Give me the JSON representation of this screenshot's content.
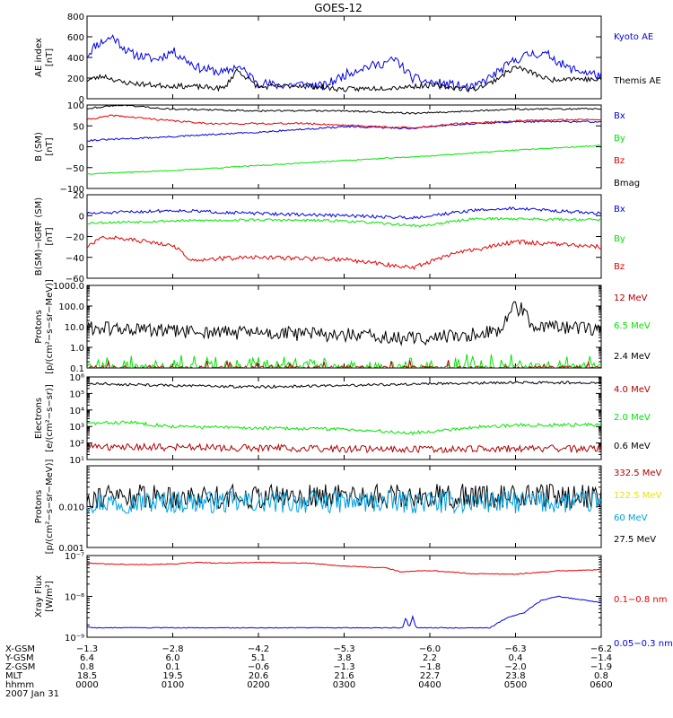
{
  "title": "GOES-12",
  "date_label": "2007 Jan 31",
  "colors": {
    "black": "#000000",
    "blue": "#0000e6",
    "red": "#e60000",
    "green": "#00e600",
    "darkred": "#b00000",
    "yellow": "#e6e600",
    "cyan": "#00a0e0"
  },
  "chart_data": [
    {
      "id": "ae",
      "type": "line",
      "ylabel": [
        "AE index",
        "[nT]"
      ],
      "yscale": "linear",
      "ylim": [
        0,
        800
      ],
      "yticks": [
        0,
        200,
        400,
        600,
        800
      ],
      "yticklabels": [
        "0",
        "200",
        "400",
        "600",
        "800"
      ],
      "legend": [
        {
          "label": "Kyoto AE",
          "color": "blue"
        },
        {
          "label": "Themis AE",
          "color": "black"
        }
      ],
      "series": [
        {
          "name": "Kyoto AE",
          "color": "blue",
          "noise": 45,
          "seed": 11,
          "x": [
            0,
            0.1,
            0.3,
            0.5,
            0.8,
            1.0,
            1.3,
            1.6,
            1.75,
            2.0,
            2.2,
            2.5,
            2.75,
            2.85,
            3.0,
            3.2,
            3.4,
            3.6,
            3.8,
            4.0,
            4.3,
            4.5,
            4.65,
            4.8,
            5.0,
            5.2,
            5.4,
            5.6,
            5.8,
            6.0
          ],
          "y": [
            420,
            520,
            600,
            440,
            380,
            460,
            300,
            250,
            320,
            160,
            130,
            140,
            120,
            160,
            230,
            300,
            330,
            380,
            200,
            160,
            130,
            100,
            180,
            260,
            380,
            440,
            420,
            300,
            260,
            220
          ]
        },
        {
          "name": "Themis AE",
          "color": "black",
          "noise": 25,
          "seed": 23,
          "x": [
            0,
            0.2,
            0.4,
            0.8,
            1.2,
            1.6,
            1.75,
            2.0,
            2.5,
            3.0,
            3.6,
            3.8,
            4.0,
            4.5,
            4.7,
            5.0,
            5.2,
            5.4,
            5.6,
            5.8,
            6.0
          ],
          "y": [
            180,
            220,
            160,
            130,
            120,
            100,
            280,
            110,
            130,
            90,
            110,
            120,
            130,
            90,
            150,
            310,
            250,
            180,
            200,
            190,
            180
          ]
        }
      ]
    },
    {
      "id": "bsm",
      "type": "line",
      "ylabel": [
        "B (SM)",
        "[nT]"
      ],
      "yscale": "linear",
      "ylim": [
        -100,
        100
      ],
      "yticks": [
        -100,
        -50,
        0,
        50,
        100
      ],
      "yticklabels": [
        "−100",
        "−50",
        "0",
        "50",
        "100"
      ],
      "legend": [
        {
          "label": "Bx",
          "color": "blue"
        },
        {
          "label": "By",
          "color": "green"
        },
        {
          "label": "Bz",
          "color": "red"
        },
        {
          "label": "Bmag",
          "color": "black"
        }
      ],
      "series": [
        {
          "name": "Bx",
          "color": "blue",
          "noise": 2,
          "seed": 31,
          "x": [
            0,
            1,
            2,
            3,
            3.8,
            4.2,
            5,
            6
          ],
          "y": [
            15,
            24,
            35,
            48,
            44,
            52,
            60,
            60
          ]
        },
        {
          "name": "By",
          "color": "green",
          "noise": 1.2,
          "seed": 37,
          "x": [
            0,
            1,
            2,
            3,
            4,
            5,
            6
          ],
          "y": [
            -65,
            -57,
            -45,
            -33,
            -22,
            -8,
            3
          ]
        },
        {
          "name": "Bz",
          "color": "red",
          "noise": 2,
          "seed": 41,
          "x": [
            0,
            0.3,
            1.0,
            1.5,
            2.5,
            3.8,
            4.3,
            5,
            6
          ],
          "y": [
            65,
            75,
            62,
            55,
            56,
            45,
            55,
            62,
            66
          ]
        },
        {
          "name": "Bmag",
          "color": "black",
          "noise": 2,
          "seed": 43,
          "x": [
            0,
            0.4,
            1.0,
            2,
            3,
            3.8,
            4.4,
            5,
            6
          ],
          "y": [
            92,
            100,
            90,
            86,
            86,
            80,
            85,
            90,
            91
          ]
        }
      ]
    },
    {
      "id": "dbsm",
      "type": "line",
      "ylabel": [
        "B(SM)−IGRF (SM)",
        "[nT]"
      ],
      "yscale": "linear",
      "ylim": [
        -60,
        20
      ],
      "yticks": [
        -60,
        -40,
        -20,
        0,
        20
      ],
      "yticklabels": [
        "−60",
        "−40",
        "−20",
        "0",
        "20"
      ],
      "legend": [
        {
          "label": "Bx",
          "color": "blue"
        },
        {
          "label": "By",
          "color": "green"
        },
        {
          "label": "Bz",
          "color": "red"
        }
      ],
      "series": [
        {
          "name": "Bx",
          "color": "blue",
          "noise": 1.5,
          "seed": 51,
          "x": [
            0,
            1,
            2,
            3,
            3.8,
            4.5,
            5,
            6
          ],
          "y": [
            2,
            5,
            2,
            0,
            -2,
            5,
            7,
            2
          ]
        },
        {
          "name": "By",
          "color": "green",
          "noise": 1.2,
          "seed": 53,
          "x": [
            0,
            1,
            2,
            3,
            3.9,
            4.5,
            5,
            6
          ],
          "y": [
            -7,
            -5,
            -4,
            -5,
            -10,
            -3,
            -3,
            -4
          ]
        },
        {
          "name": "Bz",
          "color": "red",
          "noise": 2,
          "seed": 57,
          "x": [
            0,
            0.2,
            1.0,
            1.2,
            2.0,
            3.0,
            3.8,
            4.2,
            5.0,
            6.0
          ],
          "y": [
            -30,
            -20,
            -28,
            -42,
            -40,
            -42,
            -50,
            -38,
            -25,
            -30
          ]
        }
      ]
    },
    {
      "id": "protons_low",
      "type": "line",
      "ylabel": [
        "Protons",
        "[p/(cm²−s−sr−MeV)]"
      ],
      "yscale": "log",
      "ylim": [
        0.1,
        1000
      ],
      "yticks": [
        0.1,
        1,
        10,
        100,
        1000
      ],
      "yticklabels": [
        "0.1",
        "1.0",
        "10.0",
        "100.0",
        "1000.0"
      ],
      "legend": [
        {
          "label": "12 MeV",
          "color": "darkred"
        },
        {
          "label": "6.5 MeV",
          "color": "green"
        },
        {
          "label": "2.4 MeV",
          "color": "black"
        }
      ],
      "series": [
        {
          "name": "2.4 MeV",
          "color": "black",
          "noise_log": 0.35,
          "seed": 61,
          "x": [
            0,
            1,
            2,
            3,
            3.7,
            4.5,
            4.85,
            4.95,
            5.1,
            5.2,
            6
          ],
          "y": [
            9,
            6,
            5,
            4,
            2.5,
            4,
            8,
            100,
            60,
            9,
            8
          ]
        },
        {
          "name": "6.5 MeV",
          "color": "green",
          "noise_log": 0.2,
          "seed": 67,
          "spikes": 0.3,
          "x": [
            0,
            6
          ],
          "y": [
            0.1,
            0.1
          ]
        },
        {
          "name": "12 MeV",
          "color": "darkred",
          "noise_log": 0.1,
          "seed": 71,
          "spikes": 0.06,
          "x": [
            0,
            6
          ],
          "y": [
            0.1,
            0.1
          ]
        }
      ]
    },
    {
      "id": "electrons",
      "type": "line",
      "ylabel": [
        "Electrons",
        "[e/(cm²−s−sr)]"
      ],
      "yscale": "log",
      "ylim": [
        10,
        1000000
      ],
      "yticks": [
        10,
        100,
        1000,
        10000,
        100000,
        1000000
      ],
      "yticklabels": [
        "10¹",
        "10²",
        "10³",
        "10⁴",
        "10⁵",
        "10⁶"
      ],
      "legend": [
        {
          "label": "4.0 MeV",
          "color": "darkred"
        },
        {
          "label": "2.0 MeV",
          "color": "green"
        },
        {
          "label": "0.6 MeV",
          "color": "black"
        }
      ],
      "series": [
        {
          "name": "0.6 MeV",
          "color": "black",
          "noise_log": 0.08,
          "seed": 81,
          "x": [
            0,
            1,
            2,
            3,
            4,
            5,
            6
          ],
          "y": [
            400000,
            300000,
            250000,
            300000,
            400000,
            450000,
            450000
          ]
        },
        {
          "name": "2.0 MeV",
          "color": "green",
          "noise_log": 0.1,
          "seed": 83,
          "x": [
            0,
            0.5,
            1,
            2,
            3,
            3.8,
            4.5,
            5,
            6
          ],
          "y": [
            1500,
            1800,
            1000,
            800,
            700,
            400,
            900,
            1200,
            1300
          ]
        },
        {
          "name": "4.0 MeV",
          "color": "darkred",
          "noise_log": 0.22,
          "seed": 87,
          "x": [
            0,
            1,
            2,
            3,
            4,
            5,
            6
          ],
          "y": [
            60,
            55,
            50,
            45,
            40,
            45,
            45
          ]
        }
      ]
    },
    {
      "id": "protons_high",
      "type": "line",
      "ylabel": [
        "Protons",
        "[p/(cm²−s−sr−MeV)]"
      ],
      "yscale": "log",
      "ylim": [
        0.001,
        0.1
      ],
      "yticks": [
        0.001,
        0.01,
        0.1
      ],
      "yticklabels": [
        "0.001",
        "0.010",
        ""
      ],
      "legend": [
        {
          "label": "332.5 MeV",
          "color": "darkred"
        },
        {
          "label": "122.5 MeV",
          "color": "yellow"
        },
        {
          "label": "60 MeV",
          "color": "cyan"
        },
        {
          "label": "27.5 MeV",
          "color": "black"
        }
      ],
      "series": [
        {
          "name": "27.5 MeV",
          "color": "black",
          "noise_log": 0.3,
          "seed": 91,
          "x": [
            0,
            6
          ],
          "y": [
            0.018,
            0.018
          ]
        },
        {
          "name": "60 MeV",
          "color": "cyan",
          "noise_log": 0.28,
          "seed": 97,
          "x": [
            0,
            6
          ],
          "y": [
            0.013,
            0.013
          ]
        }
      ]
    },
    {
      "id": "xray",
      "type": "line",
      "ylabel": [
        "Xray Flux",
        "[W/m²]"
      ],
      "yscale": "log",
      "ylim": [
        1e-09,
        1e-07
      ],
      "yticks": [
        1e-09,
        1e-08,
        1e-07
      ],
      "yticklabels": [
        "10⁻⁹",
        "10⁻⁸",
        "10⁻⁷"
      ],
      "legend": [
        {
          "label": "0.1−0.8 nm",
          "color": "red"
        },
        {
          "label": "0.05−0.3 nm",
          "color": "blue"
        }
      ],
      "series": [
        {
          "name": "0.1-0.8 nm",
          "color": "red",
          "noise_log": 0.01,
          "seed": 101,
          "x": [
            0,
            0.5,
            1.0,
            1.3,
            1.5,
            2.0,
            2.6,
            3.0,
            3.5,
            3.65,
            4.0,
            4.5,
            5.0,
            5.5,
            6.0
          ],
          "y": [
            6.5e-08,
            6e-08,
            6.2e-08,
            6.8e-08,
            6.5e-08,
            6.8e-08,
            6.5e-08,
            5.5e-08,
            5e-08,
            4e-08,
            4.3e-08,
            3.6e-08,
            3.5e-08,
            4.2e-08,
            4.5e-08
          ]
        },
        {
          "name": "0.05-0.3 nm",
          "color": "blue",
          "noise_log": 0.01,
          "seed": 103,
          "x": [
            0,
            0.1,
            3.68,
            3.72,
            3.76,
            3.8,
            3.84,
            3.88,
            3.92,
            3.96,
            4.7,
            4.9,
            5.1,
            5.3,
            5.5,
            6.0
          ],
          "y": [
            1.8e-09,
            1.7e-09,
            1.7e-09,
            3e-09,
            1.7e-09,
            3.2e-09,
            1.7e-09,
            1.7e-09,
            1.7e-09,
            1.7e-09,
            1.7e-09,
            3e-09,
            4e-09,
            8e-09,
            1e-08,
            7e-09
          ]
        }
      ]
    }
  ],
  "x_axis": {
    "xlim": [
      0,
      6
    ],
    "rows": [
      {
        "label": "X-GSM",
        "values": [
          "−1.3",
          "−2.8",
          "−4.2",
          "−5.3",
          "−6.0",
          "−6.3",
          "−6.2"
        ]
      },
      {
        "label": "Y-GSM",
        "values": [
          "6.4",
          "6.0",
          "5.1",
          "3.8",
          "2.2",
          "0.4",
          "−1.4"
        ]
      },
      {
        "label": "Z-GSM",
        "values": [
          "0.8",
          "0.1",
          "−0.6",
          "−1.3",
          "−1.8",
          "−2.0",
          "−1.9"
        ]
      },
      {
        "label": "MLT",
        "values": [
          "18.5",
          "19.5",
          "20.6",
          "21.6",
          "22.7",
          "23.8",
          "0.8"
        ]
      },
      {
        "label": "hhmm",
        "values": [
          "0000",
          "0100",
          "0200",
          "0300",
          "0400",
          "0500",
          "0600"
        ]
      }
    ]
  }
}
